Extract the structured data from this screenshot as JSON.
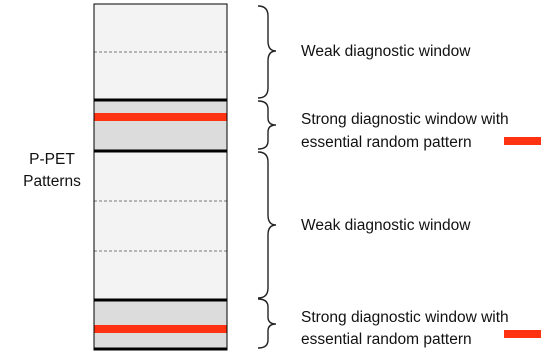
{
  "diagram": {
    "side_label_line1": "P-PET",
    "side_label_line2": "Patterns",
    "colors": {
      "weak_fill": "#f3f3f3",
      "strong_fill": "#dcdcdc",
      "boundary": "#000000",
      "random_pattern": "#ff3311",
      "brace": "#222222",
      "dashed_divider": "#777777"
    },
    "windows": [
      {
        "type": "weak",
        "label_line1": "Weak diagnostic window",
        "label_line2": ""
      },
      {
        "type": "strong",
        "label_line1": "Strong diagnostic window with",
        "label_line2": "essential random pattern"
      },
      {
        "type": "weak",
        "label_line1": "Weak diagnostic window",
        "label_line2": ""
      },
      {
        "type": "strong",
        "label_line1": "Strong diagnostic window with",
        "label_line2": "essential random pattern"
      }
    ]
  }
}
